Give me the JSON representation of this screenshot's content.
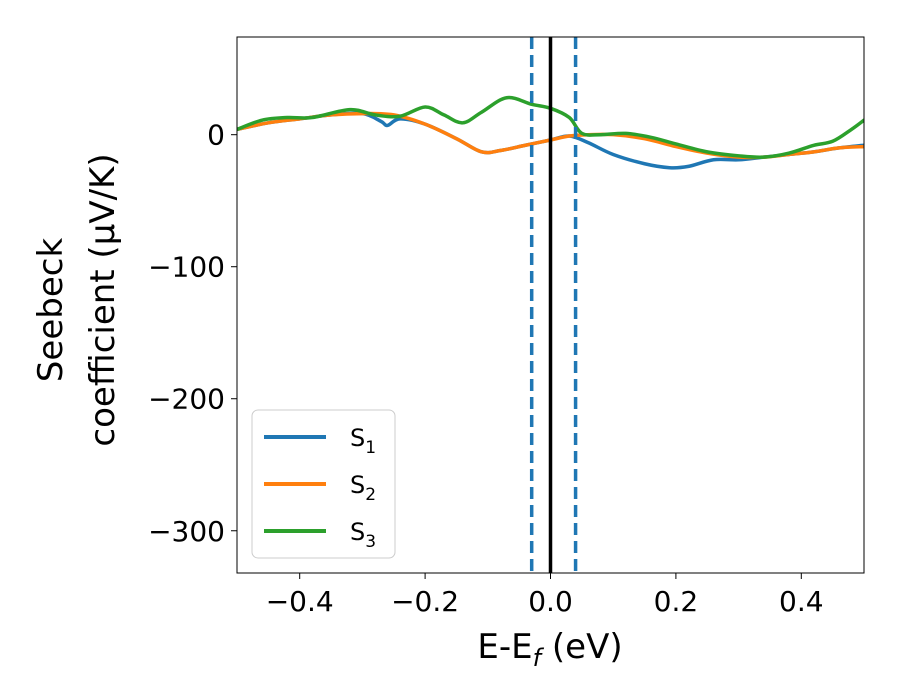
{
  "chart_data": {
    "type": "line",
    "title": "",
    "xlabel": {
      "main": "E-E",
      "sub": "f",
      "unit": " (eV)"
    },
    "ylabel": {
      "line1": "Seebeck",
      "line2": "coefficient  (μV/K)"
    },
    "xlim": [
      -0.5,
      0.5
    ],
    "ylim": [
      -332,
      74
    ],
    "grid": false,
    "legend_position": "lower-left",
    "x_ticks": [
      -0.4,
      -0.2,
      0.0,
      0.2,
      0.4
    ],
    "x_tick_labels": [
      "−0.4",
      "−0.2",
      "0.0",
      "0.2",
      "0.4"
    ],
    "y_ticks": [
      0,
      -100,
      -200,
      -300
    ],
    "y_tick_labels": [
      "0",
      "−100",
      "−200",
      "−300"
    ],
    "vertical_lines": [
      {
        "x": -0.03,
        "style": "dashed",
        "color": "#1f77b4"
      },
      {
        "x": 0.0,
        "style": "solid",
        "color": "#000000"
      },
      {
        "x": 0.04,
        "style": "dashed",
        "color": "#1f77b4"
      }
    ],
    "series": [
      {
        "name": "S",
        "sub": "1",
        "color": "#1f77b4",
        "points": [
          [
            -0.5,
            4
          ],
          [
            -0.45,
            9
          ],
          [
            -0.4,
            12
          ],
          [
            -0.35,
            15
          ],
          [
            -0.3,
            16
          ],
          [
            -0.27,
            10
          ],
          [
            -0.26,
            7
          ],
          [
            -0.24,
            12
          ],
          [
            -0.2,
            8
          ],
          [
            -0.15,
            -3
          ],
          [
            -0.11,
            -13
          ],
          [
            -0.08,
            -12
          ],
          [
            -0.04,
            -8
          ],
          [
            0.0,
            -4
          ],
          [
            0.03,
            -1
          ],
          [
            0.06,
            -6
          ],
          [
            0.1,
            -15
          ],
          [
            0.15,
            -22
          ],
          [
            0.19,
            -25
          ],
          [
            0.22,
            -24
          ],
          [
            0.26,
            -19
          ],
          [
            0.3,
            -19
          ],
          [
            0.34,
            -17
          ],
          [
            0.38,
            -15
          ],
          [
            0.42,
            -13
          ],
          [
            0.46,
            -10
          ],
          [
            0.5,
            -8
          ]
        ]
      },
      {
        "name": "S",
        "sub": "2",
        "color": "#ff7f0e",
        "points": [
          [
            -0.5,
            4
          ],
          [
            -0.45,
            9
          ],
          [
            -0.4,
            12
          ],
          [
            -0.35,
            15
          ],
          [
            -0.3,
            16
          ],
          [
            -0.25,
            15
          ],
          [
            -0.2,
            8
          ],
          [
            -0.15,
            -3
          ],
          [
            -0.11,
            -13
          ],
          [
            -0.08,
            -12
          ],
          [
            -0.04,
            -8
          ],
          [
            0.0,
            -4
          ],
          [
            0.03,
            -1
          ],
          [
            0.06,
            0
          ],
          [
            0.1,
            0
          ],
          [
            0.15,
            -3
          ],
          [
            0.2,
            -9
          ],
          [
            0.25,
            -14
          ],
          [
            0.3,
            -17
          ],
          [
            0.34,
            -17
          ],
          [
            0.38,
            -15
          ],
          [
            0.42,
            -13
          ],
          [
            0.46,
            -10
          ],
          [
            0.5,
            -9
          ]
        ]
      },
      {
        "name": "S",
        "sub": "3",
        "color": "#2ca02c",
        "points": [
          [
            -0.5,
            4
          ],
          [
            -0.46,
            11
          ],
          [
            -0.42,
            13
          ],
          [
            -0.38,
            13
          ],
          [
            -0.32,
            19
          ],
          [
            -0.28,
            15
          ],
          [
            -0.24,
            14
          ],
          [
            -0.2,
            21
          ],
          [
            -0.17,
            15
          ],
          [
            -0.14,
            9
          ],
          [
            -0.11,
            17
          ],
          [
            -0.07,
            28
          ],
          [
            -0.03,
            23
          ],
          [
            0.0,
            20
          ],
          [
            0.03,
            13
          ],
          [
            0.05,
            1
          ],
          [
            0.08,
            0
          ],
          [
            0.12,
            1
          ],
          [
            0.16,
            -2
          ],
          [
            0.2,
            -7
          ],
          [
            0.25,
            -13
          ],
          [
            0.3,
            -16
          ],
          [
            0.34,
            -17
          ],
          [
            0.38,
            -14
          ],
          [
            0.42,
            -8
          ],
          [
            0.45,
            -5
          ],
          [
            0.48,
            4
          ],
          [
            0.5,
            11
          ]
        ]
      }
    ]
  }
}
